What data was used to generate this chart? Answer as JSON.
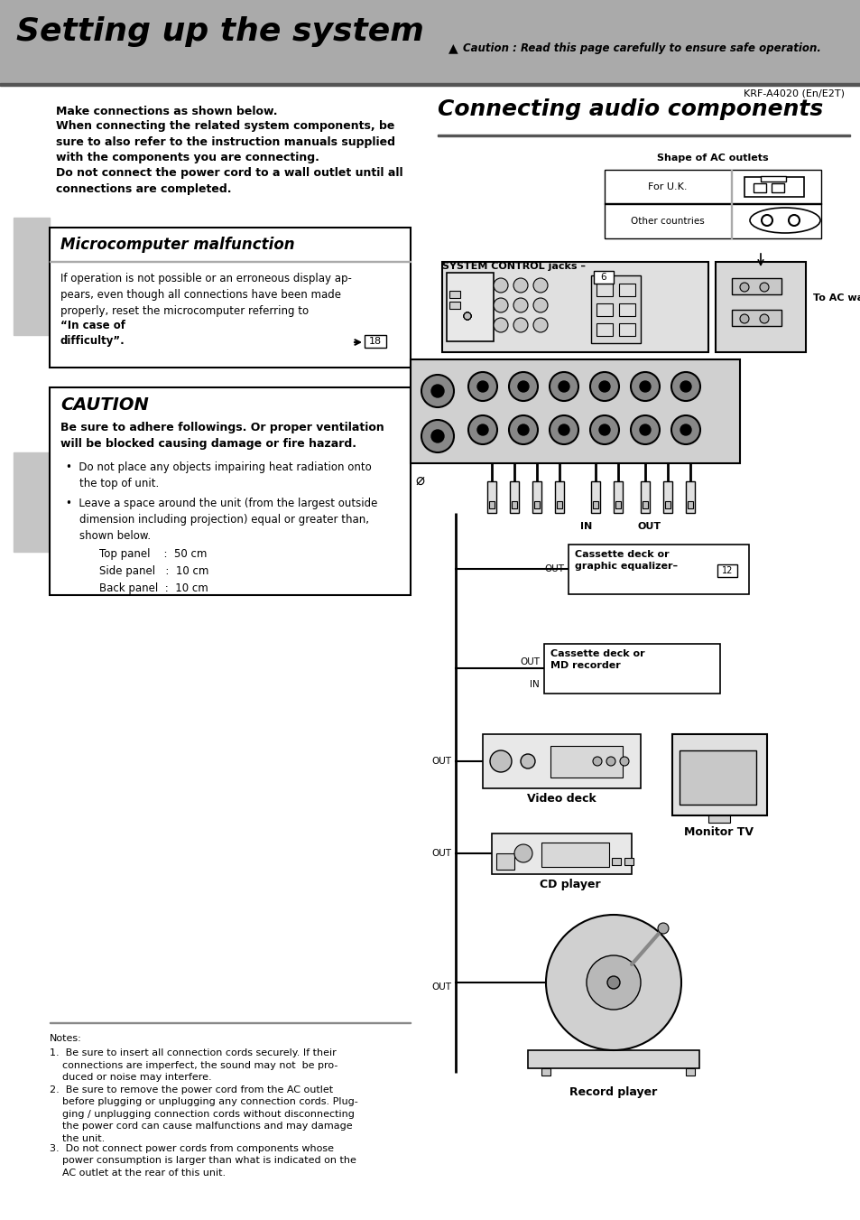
{
  "bg_color": "#aaaaaa",
  "white": "#ffffff",
  "black": "#000000",
  "light_gray": "#cccccc",
  "mid_gray": "#999999",
  "title": "Setting up the system",
  "caution_note": "Caution : Read this page carefully to ensure safe operation.",
  "model": "KRF-A4020 (En/E2T)",
  "section2_title": "Connecting audio components",
  "micro_title": "Microcomputer malfunction",
  "micro_page": "18",
  "caution_title": "CAUTION",
  "sc_page": "6",
  "cass_page": "12",
  "ac_shape_title": "Shape of AC outlets",
  "ac_uk": "For U.K.",
  "ac_other": "Other countries",
  "sys_ctrl": "SYSTEM CONTROL jacks –",
  "to_ac": "To AC wall outlet",
  "cass1_label": "Cassette deck or\ngraphic equalizer–",
  "cass2_label": "Cassette deck or\nMD recorder",
  "video_label": "Video deck",
  "monitor_label": "Monitor TV",
  "cd_label": "CD player",
  "record_label": "Record player"
}
